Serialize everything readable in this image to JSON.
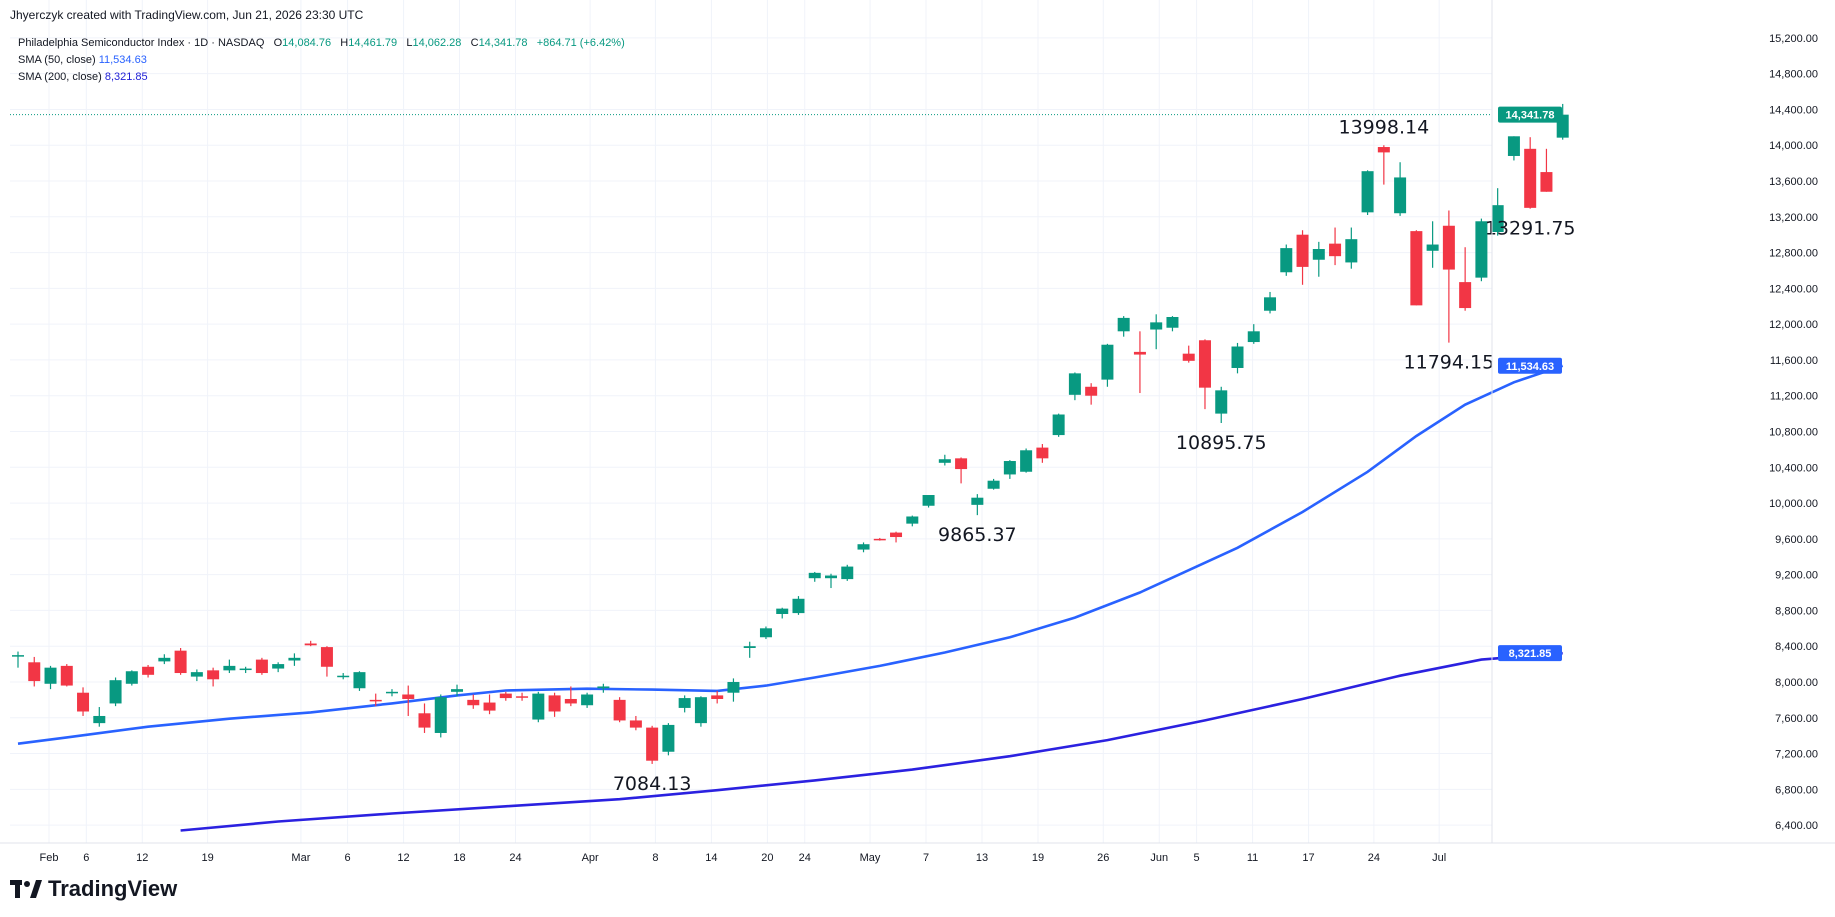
{
  "header": {
    "credit": "Jhyerczyk created with TradingView.com, Jun 21, 2026 23:30 UTC"
  },
  "legend": {
    "symbol": "Philadelphia Semiconductor Index · 1D · NASDAQ",
    "o_label": "O",
    "o_value": "14,084.76",
    "h_label": "H",
    "h_value": "14,461.79",
    "l_label": "L",
    "l_value": "14,062.28",
    "c_label": "C",
    "c_value": "14,341.78",
    "change": "+864.71 (+6.42%)",
    "sma50_label": "SMA (50, close)",
    "sma50_value": "11,534.63",
    "sma200_label": "SMA (200, close)",
    "sma200_value": "8,321.85"
  },
  "brand": {
    "name": "TradingView"
  },
  "colors": {
    "up": "#089981",
    "down": "#f23645",
    "sma50": "#2962ff",
    "sma200": "#2b21e0",
    "price_tag": "#089981",
    "sma_tag": "#2962ff"
  },
  "chart_data": {
    "type": "candlestick",
    "y_range": [
      6200,
      15400
    ],
    "y_ticks": [
      "6,400.00",
      "6,800.00",
      "7,200.00",
      "7,600.00",
      "8,000.00",
      "8,400.00",
      "8,800.00",
      "9,200.00",
      "9,600.00",
      "10,000.00",
      "10,400.00",
      "10,800.00",
      "11,200.00",
      "11,600.00",
      "12,000.00",
      "12,400.00",
      "12,800.00",
      "13,200.00",
      "13,600.00",
      "14,000.00",
      "14,400.00",
      "14,800.00",
      "15,200.00"
    ],
    "x_range": [
      -3,
      109
    ],
    "x_ticks": [
      {
        "label": "Feb",
        "day": 0
      },
      {
        "label": "6",
        "day": 4
      },
      {
        "label": "12",
        "day": 10
      },
      {
        "label": "19",
        "day": 17
      },
      {
        "label": "Mar",
        "day": 27
      },
      {
        "label": "6",
        "day": 32
      },
      {
        "label": "12",
        "day": 38
      },
      {
        "label": "18",
        "day": 44
      },
      {
        "label": "24",
        "day": 50
      },
      {
        "label": "Apr",
        "day": 58
      },
      {
        "label": "8",
        "day": 65
      },
      {
        "label": "14",
        "day": 71
      },
      {
        "label": "20",
        "day": 77
      },
      {
        "label": "24",
        "day": 81
      },
      {
        "label": "May",
        "day": 88
      },
      {
        "label": "7",
        "day": 94
      },
      {
        "label": "13",
        "day": 100
      },
      {
        "label": "19",
        "day": 106
      },
      {
        "label": "26",
        "day": 113
      },
      {
        "label": "Jun",
        "day": 119
      },
      {
        "label": "5",
        "day": 123
      },
      {
        "label": "11",
        "day": 129
      },
      {
        "label": "17",
        "day": 135
      },
      {
        "label": "24",
        "day": 142
      },
      {
        "label": "Jul",
        "day": 149
      }
    ],
    "candles": [
      {
        "x": -3,
        "o": 8300,
        "h": 8340,
        "l": 8160,
        "c": 8300
      },
      {
        "x": -2,
        "o": 8220,
        "h": 8280,
        "l": 7950,
        "c": 8010
      },
      {
        "x": -1,
        "o": 7980,
        "h": 8180,
        "l": 7920,
        "c": 8160
      },
      {
        "x": 0,
        "o": 8180,
        "h": 8200,
        "l": 7950,
        "c": 7960
      },
      {
        "x": 1,
        "o": 7880,
        "h": 7940,
        "l": 7620,
        "c": 7670
      },
      {
        "x": 2,
        "o": 7540,
        "h": 7720,
        "l": 7500,
        "c": 7620
      },
      {
        "x": 3,
        "o": 7760,
        "h": 8050,
        "l": 7730,
        "c": 8020
      },
      {
        "x": 4,
        "o": 7980,
        "h": 8130,
        "l": 7960,
        "c": 8120
      },
      {
        "x": 5,
        "o": 8170,
        "h": 8190,
        "l": 8050,
        "c": 8080
      },
      {
        "x": 6,
        "o": 8230,
        "h": 8310,
        "l": 8200,
        "c": 8270
      },
      {
        "x": 7,
        "o": 8350,
        "h": 8380,
        "l": 8080,
        "c": 8100
      },
      {
        "x": 8,
        "o": 8060,
        "h": 8140,
        "l": 8010,
        "c": 8110
      },
      {
        "x": 9,
        "o": 8130,
        "h": 8160,
        "l": 7950,
        "c": 8030
      },
      {
        "x": 10,
        "o": 8130,
        "h": 8250,
        "l": 8100,
        "c": 8180
      },
      {
        "x": 11,
        "o": 8140,
        "h": 8170,
        "l": 8100,
        "c": 8150
      },
      {
        "x": 12,
        "o": 8250,
        "h": 8270,
        "l": 8080,
        "c": 8100
      },
      {
        "x": 13,
        "o": 8150,
        "h": 8220,
        "l": 8110,
        "c": 8200
      },
      {
        "x": 14,
        "o": 8240,
        "h": 8320,
        "l": 8180,
        "c": 8270
      },
      {
        "x": 15,
        "o": 8430,
        "h": 8460,
        "l": 8400,
        "c": 8410
      },
      {
        "x": 16,
        "o": 8390,
        "h": 8400,
        "l": 8060,
        "c": 8170
      },
      {
        "x": 17,
        "o": 8070,
        "h": 8100,
        "l": 8030,
        "c": 8070
      },
      {
        "x": 18,
        "o": 7930,
        "h": 8120,
        "l": 7900,
        "c": 8110
      },
      {
        "x": 19,
        "o": 7800,
        "h": 7870,
        "l": 7730,
        "c": 7790
      },
      {
        "x": 20,
        "o": 7880,
        "h": 7920,
        "l": 7840,
        "c": 7890
      },
      {
        "x": 21,
        "o": 7860,
        "h": 7960,
        "l": 7620,
        "c": 7810
      },
      {
        "x": 22,
        "o": 7650,
        "h": 7760,
        "l": 7430,
        "c": 7490
      },
      {
        "x": 23,
        "o": 7430,
        "h": 7860,
        "l": 7380,
        "c": 7830
      },
      {
        "x": 24,
        "o": 7890,
        "h": 7970,
        "l": 7840,
        "c": 7920
      },
      {
        "x": 25,
        "o": 7800,
        "h": 7860,
        "l": 7700,
        "c": 7740
      },
      {
        "x": 26,
        "o": 7770,
        "h": 7860,
        "l": 7640,
        "c": 7680
      },
      {
        "x": 27,
        "o": 7870,
        "h": 7890,
        "l": 7790,
        "c": 7820
      },
      {
        "x": 28,
        "o": 7840,
        "h": 7880,
        "l": 7790,
        "c": 7830
      },
      {
        "x": 29,
        "o": 7580,
        "h": 7890,
        "l": 7550,
        "c": 7870
      },
      {
        "x": 30,
        "o": 7850,
        "h": 7880,
        "l": 7610,
        "c": 7670
      },
      {
        "x": 31,
        "o": 7810,
        "h": 7950,
        "l": 7730,
        "c": 7760
      },
      {
        "x": 32,
        "o": 7740,
        "h": 7880,
        "l": 7710,
        "c": 7860
      },
      {
        "x": 33,
        "o": 7930,
        "h": 7980,
        "l": 7880,
        "c": 7950
      },
      {
        "x": 34,
        "o": 7800,
        "h": 7830,
        "l": 7550,
        "c": 7570
      },
      {
        "x": 35,
        "o": 7570,
        "h": 7620,
        "l": 7460,
        "c": 7490
      },
      {
        "x": 36,
        "o": 7490,
        "h": 7510,
        "l": 7084,
        "c": 7120
      },
      {
        "x": 37,
        "o": 7220,
        "h": 7540,
        "l": 7180,
        "c": 7520
      },
      {
        "x": 38,
        "o": 7710,
        "h": 7850,
        "l": 7660,
        "c": 7820
      },
      {
        "x": 39,
        "o": 7540,
        "h": 7840,
        "l": 7500,
        "c": 7830
      },
      {
        "x": 40,
        "o": 7850,
        "h": 7900,
        "l": 7760,
        "c": 7810
      },
      {
        "x": 41,
        "o": 7880,
        "h": 8040,
        "l": 7780,
        "c": 8000
      },
      {
        "x": 42,
        "o": 8380,
        "h": 8450,
        "l": 8270,
        "c": 8400
      },
      {
        "x": 43,
        "o": 8500,
        "h": 8620,
        "l": 8480,
        "c": 8600
      },
      {
        "x": 44,
        "o": 8760,
        "h": 8830,
        "l": 8710,
        "c": 8820
      },
      {
        "x": 45,
        "o": 8770,
        "h": 8960,
        "l": 8750,
        "c": 8930
      },
      {
        "x": 46,
        "o": 9160,
        "h": 9230,
        "l": 9120,
        "c": 9220
      },
      {
        "x": 47,
        "o": 9160,
        "h": 9210,
        "l": 9050,
        "c": 9190
      },
      {
        "x": 48,
        "o": 9150,
        "h": 9310,
        "l": 9130,
        "c": 9290
      },
      {
        "x": 49,
        "o": 9480,
        "h": 9560,
        "l": 9450,
        "c": 9540
      },
      {
        "x": 50,
        "o": 9600,
        "h": 9610,
        "l": 9580,
        "c": 9590
      },
      {
        "x": 51,
        "o": 9670,
        "h": 9680,
        "l": 9560,
        "c": 9620
      },
      {
        "x": 52,
        "o": 9770,
        "h": 9860,
        "l": 9740,
        "c": 9850
      },
      {
        "x": 53,
        "o": 9970,
        "h": 10080,
        "l": 9950,
        "c": 10090
      },
      {
        "x": 54,
        "o": 10450,
        "h": 10540,
        "l": 10420,
        "c": 10490
      },
      {
        "x": 55,
        "o": 10500,
        "h": 10510,
        "l": 10220,
        "c": 10380
      },
      {
        "x": 56,
        "o": 9980,
        "h": 10100,
        "l": 9865,
        "c": 10060
      },
      {
        "x": 57,
        "o": 10160,
        "h": 10270,
        "l": 10150,
        "c": 10250
      },
      {
        "x": 58,
        "o": 10320,
        "h": 10480,
        "l": 10270,
        "c": 10470
      },
      {
        "x": 59,
        "o": 10350,
        "h": 10610,
        "l": 10340,
        "c": 10590
      },
      {
        "x": 60,
        "o": 10620,
        "h": 10660,
        "l": 10450,
        "c": 10500
      },
      {
        "x": 61,
        "o": 10760,
        "h": 11000,
        "l": 10740,
        "c": 10990
      },
      {
        "x": 62,
        "o": 11210,
        "h": 11460,
        "l": 11150,
        "c": 11450
      },
      {
        "x": 63,
        "o": 11300,
        "h": 11340,
        "l": 11100,
        "c": 11200
      },
      {
        "x": 64,
        "o": 11380,
        "h": 11780,
        "l": 11300,
        "c": 11770
      },
      {
        "x": 65,
        "o": 11920,
        "h": 12090,
        "l": 11860,
        "c": 12070
      },
      {
        "x": 66,
        "o": 11690,
        "h": 11920,
        "l": 11230,
        "c": 11660
      },
      {
        "x": 67,
        "o": 11940,
        "h": 12110,
        "l": 11720,
        "c": 12020
      },
      {
        "x": 68,
        "o": 11960,
        "h": 12090,
        "l": 11920,
        "c": 12080
      },
      {
        "x": 69,
        "o": 11670,
        "h": 11760,
        "l": 11570,
        "c": 11590
      },
      {
        "x": 70,
        "o": 11820,
        "h": 11830,
        "l": 11050,
        "c": 11290
      },
      {
        "x": 71,
        "o": 11000,
        "h": 11300,
        "l": 10895,
        "c": 11260
      },
      {
        "x": 72,
        "o": 11510,
        "h": 11790,
        "l": 11450,
        "c": 11750
      },
      {
        "x": 73,
        "o": 11800,
        "h": 12000,
        "l": 11780,
        "c": 11920
      },
      {
        "x": 74,
        "o": 12150,
        "h": 12360,
        "l": 12120,
        "c": 12300
      },
      {
        "x": 75,
        "o": 12580,
        "h": 12890,
        "l": 12540,
        "c": 12850
      },
      {
        "x": 76,
        "o": 13000,
        "h": 13050,
        "l": 12440,
        "c": 12640
      },
      {
        "x": 77,
        "o": 12720,
        "h": 12920,
        "l": 12530,
        "c": 12840
      },
      {
        "x": 78,
        "o": 12900,
        "h": 13080,
        "l": 12660,
        "c": 12760
      },
      {
        "x": 79,
        "o": 12690,
        "h": 13080,
        "l": 12620,
        "c": 12950
      },
      {
        "x": 80,
        "o": 13250,
        "h": 13720,
        "l": 13220,
        "c": 13710
      },
      {
        "x": 81,
        "o": 13980,
        "h": 14000,
        "l": 13560,
        "c": 13920
      },
      {
        "x": 82,
        "o": 13240,
        "h": 13810,
        "l": 13210,
        "c": 13640
      },
      {
        "x": 83,
        "o": 13040,
        "h": 13050,
        "l": 12210,
        "c": 12210
      },
      {
        "x": 84,
        "o": 12820,
        "h": 13150,
        "l": 12630,
        "c": 12890
      },
      {
        "x": 85,
        "o": 13100,
        "h": 13270,
        "l": 11794,
        "c": 12610
      },
      {
        "x": 86,
        "o": 12470,
        "h": 12860,
        "l": 12150,
        "c": 12180
      },
      {
        "x": 87,
        "o": 12520,
        "h": 13180,
        "l": 12480,
        "c": 13150
      },
      {
        "x": 88,
        "o": 13030,
        "h": 13520,
        "l": 12990,
        "c": 13330
      },
      {
        "x": 89,
        "o": 13880,
        "h": 14100,
        "l": 13830,
        "c": 14100
      },
      {
        "x": 90,
        "o": 13960,
        "h": 14090,
        "l": 13291,
        "c": 13300
      },
      {
        "x": 91,
        "o": 13700,
        "h": 13960,
        "l": 13480,
        "c": 13480
      },
      {
        "x": 92,
        "o": 14084.76,
        "h": 14461.79,
        "l": 14062.28,
        "c": 14341.78
      }
    ],
    "sma50": [
      [
        -3,
        7310
      ],
      [
        0,
        7380
      ],
      [
        5,
        7500
      ],
      [
        10,
        7590
      ],
      [
        15,
        7660
      ],
      [
        20,
        7760
      ],
      [
        24,
        7850
      ],
      [
        27,
        7905
      ],
      [
        32,
        7925
      ],
      [
        36,
        7915
      ],
      [
        40,
        7900
      ],
      [
        43,
        7960
      ],
      [
        46,
        8050
      ],
      [
        50,
        8180
      ],
      [
        54,
        8330
      ],
      [
        58,
        8500
      ],
      [
        62,
        8720
      ],
      [
        66,
        9000
      ],
      [
        69,
        9250
      ],
      [
        72,
        9500
      ],
      [
        76,
        9900
      ],
      [
        80,
        10350
      ],
      [
        83,
        10750
      ],
      [
        86,
        11100
      ],
      [
        89,
        11350
      ],
      [
        92,
        11534.63
      ]
    ],
    "sma200": [
      [
        7,
        6340
      ],
      [
        13,
        6440
      ],
      [
        20,
        6530
      ],
      [
        27,
        6610
      ],
      [
        34,
        6690
      ],
      [
        40,
        6790
      ],
      [
        46,
        6900
      ],
      [
        52,
        7020
      ],
      [
        58,
        7170
      ],
      [
        64,
        7350
      ],
      [
        70,
        7570
      ],
      [
        76,
        7810
      ],
      [
        82,
        8070
      ],
      [
        87,
        8250
      ],
      [
        92,
        8321.85
      ]
    ],
    "last_price": {
      "value": 14341.78,
      "label": "14,341.78"
    },
    "sma50_tag": {
      "value": 11534.63,
      "label": "11,534.63"
    },
    "sma200_tag": {
      "value": 8321.85,
      "label": "8,321.85"
    },
    "annotations": [
      {
        "text": "13998.14",
        "x": 81,
        "y": 13998.14,
        "pos": "above"
      },
      {
        "text": "13291.75",
        "x": 90,
        "y": 13291.75,
        "pos": "below"
      },
      {
        "text": "11794.15",
        "x": 85,
        "y": 11794.15,
        "pos": "below"
      },
      {
        "text": "10895.75",
        "x": 71,
        "y": 10895.75,
        "pos": "below"
      },
      {
        "text": "9865.37",
        "x": 56,
        "y": 9865.37,
        "pos": "below"
      },
      {
        "text": "7084.13",
        "x": 36,
        "y": 7084.13,
        "pos": "below"
      }
    ]
  }
}
